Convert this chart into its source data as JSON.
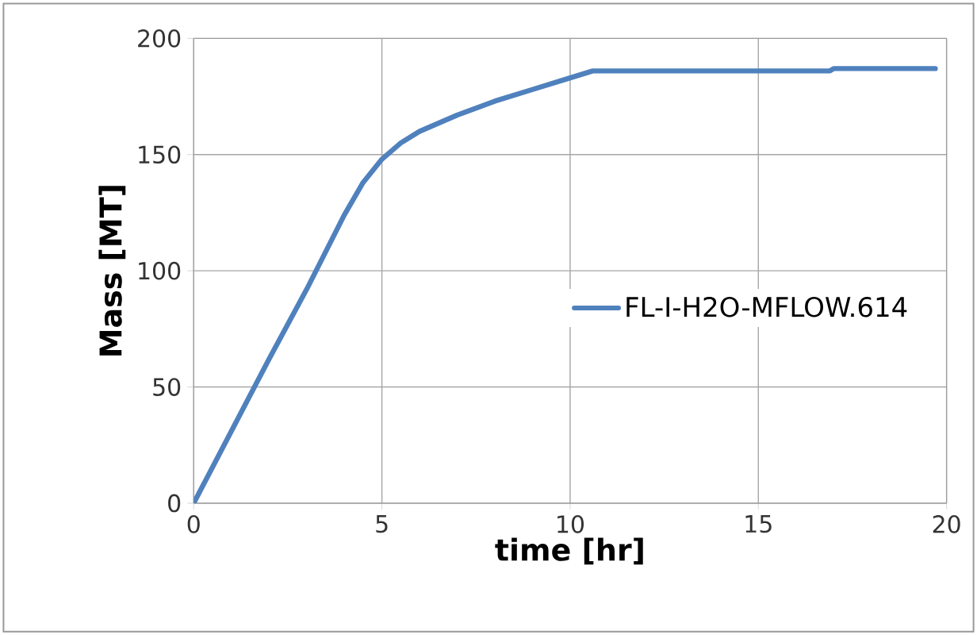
{
  "chart_data": {
    "type": "line",
    "xlabel": "time [hr]",
    "ylabel": "Mass [MT]",
    "xlim": [
      0,
      20
    ],
    "ylim": [
      0,
      200
    ],
    "xticks": [
      0,
      5,
      10,
      15,
      20
    ],
    "yticks": [
      0,
      50,
      100,
      150,
      200
    ],
    "grid": true,
    "legend": "right",
    "marker": "none",
    "line_style": "solid",
    "series": [
      {
        "name": "FL-I-H2O-MFLOW.614",
        "color": "#4f81bd",
        "x": [
          0,
          1,
          2,
          3,
          4,
          4.5,
          5,
          5.5,
          6,
          7,
          8,
          9,
          10,
          10.6,
          15,
          16.9,
          17,
          19.7
        ],
        "values": [
          0,
          31,
          62,
          92,
          124,
          138,
          148,
          155,
          160,
          167,
          173,
          178,
          183,
          186,
          186,
          186,
          187,
          187
        ]
      }
    ]
  }
}
